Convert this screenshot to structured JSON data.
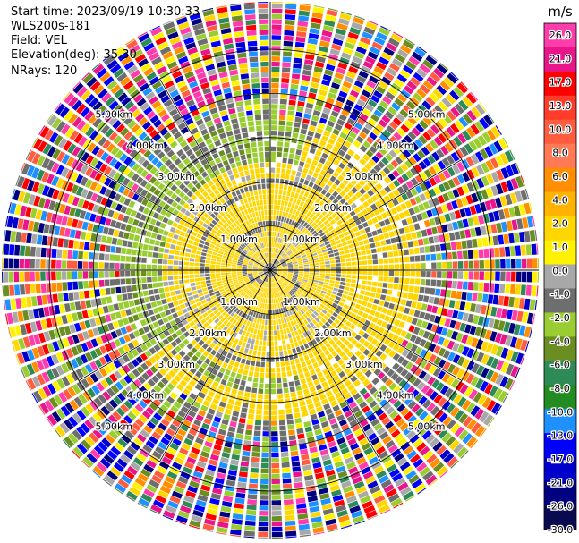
{
  "header": {
    "start_time": "Start time: 2023/09/19 10:30:33",
    "instrument": "WLS200s-181",
    "field": "Field: VEL",
    "elevation": "Elevation(deg): 35.30",
    "nrays": "NRays: 120"
  },
  "colorbar": {
    "unit": "m/s",
    "ticks": [
      "26.0",
      "21.0",
      "17.0",
      "13.0",
      "10.0",
      "8.0",
      "6.0",
      "4.0",
      "2.0",
      "1.0",
      "0.0",
      "-1.0",
      "-2.0",
      "-4.0",
      "-6.0",
      "-8.0",
      "-10.0",
      "-13.0",
      "-17.0",
      "-21.0",
      "-26.0",
      "-30.0"
    ],
    "colors": [
      "#ff3cac",
      "#e8168a",
      "#ff0000",
      "#ff3b2a",
      "#ff5c40",
      "#ff7a55",
      "#ff8f00",
      "#ffb300",
      "#ffd600",
      "#fff200",
      "#a8a8a8",
      "#6e6e6e",
      "#9acd32",
      "#6b8e23",
      "#2e8b57",
      "#228b22",
      "#1e90ff",
      "#0000ff",
      "#0000cd",
      "#000080",
      "#0a0a50"
    ]
  },
  "chart_data": {
    "type": "heatmap",
    "title": "",
    "field": "VEL",
    "nrays": 120,
    "elevation_deg": 35.3,
    "range_rings_km": [
      1.0,
      2.0,
      3.0,
      4.0,
      5.0
    ],
    "ring_labels": [
      "1.00km",
      "2.00km",
      "3.00km",
      "4.00km",
      "5.00km"
    ],
    "vmin": -30.0,
    "vmax": 26.0,
    "regions": [
      {
        "range_km": [
          0.0,
          2.4
        ],
        "description": "mostly 0 to 2 m/s (gray/yellow) with a gray spiral"
      },
      {
        "range_km": [
          2.4,
          3.4
        ],
        "description": "green band -1 to -4 m/s on west/north, yellow 1 to 2 m/s on east"
      },
      {
        "range_km": [
          3.4,
          6.0
        ],
        "description": "noisy, random velocities across full scale"
      }
    ]
  }
}
